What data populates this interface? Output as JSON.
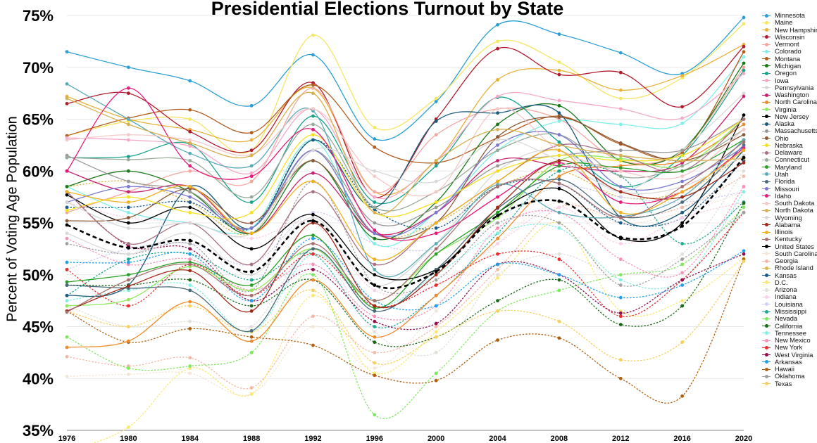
{
  "chart_data": {
    "type": "line",
    "title": "Presidential Elections Turnout by State",
    "ylabel": "Percent of Voting Age Population",
    "xlabel": "",
    "ylim": [
      35,
      75
    ],
    "yticks": [
      "35%",
      "40%",
      "45%",
      "50%",
      "55%",
      "60%",
      "65%",
      "70%",
      "75%"
    ],
    "ytick_values": [
      35,
      40,
      45,
      50,
      55,
      60,
      65,
      70,
      75
    ],
    "x": [
      "1976",
      "1980",
      "1984",
      "1988",
      "1992",
      "1996",
      "2000",
      "2004",
      "2008",
      "2012",
      "2016",
      "2020"
    ],
    "grid": true,
    "legend_position": "right",
    "series": [
      {
        "name": "Minnesota",
        "color": "#2a9fd6",
        "style": "solid",
        "values": [
          71.5,
          70.0,
          68.7,
          66.3,
          71.2,
          63.1,
          66.7,
          74.1,
          73.2,
          71.4,
          69.4,
          74.8
        ]
      },
      {
        "name": "Maine",
        "color": "#f5e663",
        "style": "solid",
        "values": [
          63.4,
          64.8,
          65.0,
          62.0,
          73.1,
          64.2,
          67.0,
          72.5,
          70.5,
          67.0,
          69.0,
          74.2
        ]
      },
      {
        "name": "New Hampshire",
        "color": "#e8b13a",
        "style": "solid",
        "values": [
          67.2,
          65.0,
          64.0,
          63.0,
          68.0,
          58.0,
          61.0,
          68.8,
          69.7,
          67.8,
          69.2,
          72.2
        ]
      },
      {
        "name": "Wisconsin",
        "color": "#b01c2e",
        "style": "solid",
        "values": [
          66.5,
          67.5,
          63.8,
          62.0,
          68.5,
          57.5,
          65.0,
          71.8,
          69.3,
          69.5,
          66.2,
          72.0
        ]
      },
      {
        "name": "Vermont",
        "color": "#f4a6a0",
        "style": "solid",
        "values": [
          56.0,
          58.0,
          60.0,
          59.0,
          68.0,
          58.0,
          63.5,
          66.0,
          65.0,
          61.0,
          62.0,
          70.0
        ]
      },
      {
        "name": "Colorado",
        "color": "#7ff0e8",
        "style": "solid",
        "values": [
          58.5,
          56.0,
          55.0,
          54.5,
          63.0,
          53.0,
          56.0,
          62.0,
          64.8,
          64.5,
          64.6,
          71.0
        ]
      },
      {
        "name": "Montana",
        "color": "#b35c1e",
        "style": "solid",
        "values": [
          63.4,
          65.1,
          65.9,
          63.7,
          68.3,
          62.3,
          60.8,
          63.2,
          65.3,
          62.6,
          61.8,
          71.5
        ]
      },
      {
        "name": "Michigan",
        "color": "#1a7a1a",
        "style": "solid",
        "values": [
          58.5,
          60.0,
          58.0,
          54.0,
          61.0,
          53.5,
          57.0,
          64.5,
          66.3,
          61.0,
          62.0,
          70.4
        ]
      },
      {
        "name": "Oregon",
        "color": "#1aa38a",
        "style": "solid",
        "values": [
          61.3,
          61.4,
          62.6,
          57.0,
          65.3,
          57.0,
          60.5,
          67.1,
          62.8,
          58.5,
          61.5,
          69.7
        ]
      },
      {
        "name": "Iowa",
        "color": "#f5a8c8",
        "style": "solid",
        "values": [
          63.2,
          63.0,
          62.4,
          59.8,
          66.0,
          57.5,
          61.0,
          67.2,
          66.8,
          66.0,
          65.1,
          69.4
        ]
      },
      {
        "name": "Pennsylvania",
        "color": "#d8d8d8",
        "style": "solid",
        "values": [
          54.0,
          52.0,
          54.0,
          50.0,
          55.5,
          49.0,
          53.0,
          60.0,
          62.0,
          58.0,
          62.0,
          67.5
        ]
      },
      {
        "name": "Washington",
        "color": "#c8206e",
        "style": "solid",
        "values": [
          60.0,
          58.0,
          58.5,
          54.0,
          59.8,
          54.0,
          56.0,
          61.0,
          60.5,
          60.0,
          60.8,
          67.2
        ]
      },
      {
        "name": "North Carolina",
        "color": "#ef8a2a",
        "style": "solid",
        "values": [
          43.0,
          43.6,
          47.4,
          43.6,
          49.5,
          44.0,
          48.0,
          53.5,
          59.5,
          60.5,
          61.0,
          64.5
        ]
      },
      {
        "name": "Virginia",
        "color": "#8fea5a",
        "style": "solid",
        "values": [
          47.0,
          47.6,
          50.8,
          48.5,
          52.5,
          47.5,
          52.0,
          55.5,
          61.0,
          61.2,
          60.5,
          65.0
        ]
      },
      {
        "name": "New Jersey",
        "color": "#000000",
        "style": "solid",
        "values": [
          57.7,
          55.0,
          56.5,
          52.5,
          55.8,
          50.0,
          50.5,
          56.0,
          58.3,
          53.5,
          55.0,
          65.4
        ]
      },
      {
        "name": "Alaska",
        "color": "#1a5a7a",
        "style": "solid",
        "values": [
          48.0,
          49.0,
          58.5,
          54.5,
          63.0,
          56.5,
          64.8,
          65.6,
          65.6,
          55.5,
          56.0,
          62.0
        ]
      },
      {
        "name": "Massachusetts",
        "color": "#999999",
        "style": "solid",
        "values": [
          61.5,
          59.0,
          58.0,
          54.5,
          62.0,
          55.0,
          56.5,
          60.5,
          61.5,
          62.0,
          62.0,
          65.0
        ]
      },
      {
        "name": "Ohio",
        "color": "#8b5a3a",
        "style": "solid",
        "values": [
          55.2,
          55.5,
          58.3,
          55.0,
          61.0,
          54.0,
          55.0,
          63.3,
          65.2,
          62.7,
          61.0,
          63.5
        ]
      },
      {
        "name": "Nebraska",
        "color": "#f5e020",
        "style": "solid",
        "values": [
          56.2,
          57.5,
          56.0,
          56.0,
          63.5,
          56.0,
          57.0,
          60.0,
          61.5,
          61.0,
          61.5,
          65.0
        ]
      },
      {
        "name": "Delaware",
        "color": "#a87080",
        "style": "solid",
        "values": [
          58.0,
          53.0,
          55.0,
          51.0,
          58.0,
          51.0,
          55.0,
          59.0,
          62.5,
          61.5,
          60.0,
          65.0
        ]
      },
      {
        "name": "Connecticut",
        "color": "#9aaa9a",
        "style": "solid",
        "values": [
          61.3,
          61.1,
          61.0,
          57.5,
          64.5,
          56.5,
          58.0,
          62.0,
          63.5,
          59.5,
          60.5,
          64.0
        ]
      },
      {
        "name": "Maryland",
        "color": "#2aa02a",
        "style": "solid",
        "values": [
          49.3,
          50.0,
          51.2,
          49.0,
          53.8,
          46.8,
          52.0,
          56.0,
          60.5,
          60.3,
          60.0,
          63.0
        ]
      },
      {
        "name": "Utah",
        "color": "#5aaab8",
        "style": "solid",
        "values": [
          68.4,
          65.0,
          61.7,
          60.5,
          65.8,
          50.5,
          53.0,
          58.7,
          56.0,
          55.6,
          57.5,
          63.0
        ]
      },
      {
        "name": "Florida",
        "color": "#4a6a7a",
        "style": "solid",
        "values": [
          49.0,
          48.7,
          48.5,
          44.6,
          52.5,
          46.5,
          50.5,
          56.4,
          59.2,
          55.6,
          57.0,
          62.5
        ]
      },
      {
        "name": "Missouri",
        "color": "#7a78d0",
        "style": "solid",
        "values": [
          57.0,
          58.5,
          57.5,
          54.5,
          62.0,
          54.0,
          56.0,
          62.5,
          63.5,
          58.5,
          59.0,
          62.3
        ]
      },
      {
        "name": "Idaho",
        "color": "#e81a7a",
        "style": "solid",
        "values": [
          60.0,
          68.0,
          60.5,
          59.5,
          64.0,
          54.3,
          54.0,
          57.5,
          60.8,
          57.0,
          58.0,
          62.2
        ]
      },
      {
        "name": "South Dakota",
        "color": "#f5c8c8",
        "style": "solid",
        "values": [
          63.0,
          63.5,
          63.0,
          61.6,
          66.0,
          59.5,
          58.0,
          66.0,
          62.0,
          60.0,
          59.5,
          64.0
        ]
      },
      {
        "name": "North Dakota",
        "color": "#d8b050",
        "style": "solid",
        "values": [
          67.0,
          64.5,
          62.7,
          61.5,
          67.5,
          56.0,
          61.0,
          64.0,
          62.5,
          61.5,
          61.0,
          61.2
        ]
      },
      {
        "name": "Wyoming",
        "color": "#d8d8d8",
        "style": "solid",
        "values": [
          57.0,
          54.5,
          55.0,
          54.0,
          62.0,
          60.0,
          59.0,
          63.0,
          61.0,
          58.0,
          58.5,
          61.5
        ]
      },
      {
        "name": "Alabama",
        "color": "#a02818",
        "style": "solid",
        "values": [
          46.5,
          48.9,
          50.4,
          46.5,
          55.0,
          47.0,
          50.0,
          56.5,
          61.0,
          58.0,
          57.5,
          60.8
        ]
      },
      {
        "name": "Illinois",
        "color": "#f0b020",
        "style": "solid",
        "values": [
          58.0,
          57.0,
          58.5,
          54.0,
          59.0,
          51.5,
          55.0,
          59.0,
          62.0,
          56.0,
          58.0,
          62.0
        ]
      },
      {
        "name": "Kentucky",
        "color": "#a87070",
        "style": "solid",
        "values": [
          46.4,
          49.5,
          51.0,
          48.0,
          53.0,
          47.5,
          52.5,
          58.5,
          58.8,
          55.5,
          58.5,
          62.8
        ]
      },
      {
        "name": "United States",
        "color": "#000000",
        "style": "dashed",
        "values": [
          54.8,
          52.6,
          53.3,
          50.3,
          55.2,
          49.0,
          50.3,
          55.7,
          57.1,
          53.6,
          54.7,
          61.3
        ]
      },
      {
        "name": "South Carolina",
        "color": "#f3e6d6",
        "style": "dotted",
        "values": [
          40.2,
          40.4,
          40.5,
          38.5,
          45.0,
          41.0,
          46.5,
          53.0,
          57.0,
          55.0,
          56.0,
          58.0
        ]
      },
      {
        "name": "Georgia",
        "color": "#f4b8a8",
        "style": "dotted",
        "values": [
          42.1,
          41.2,
          42.0,
          39.1,
          46.0,
          42.5,
          45.0,
          50.5,
          56.5,
          55.5,
          56.5,
          59.5
        ]
      },
      {
        "name": "Rhode Island",
        "color": "#d8b850",
        "style": "dotted",
        "values": [
          58.5,
          59.0,
          57.0,
          54.0,
          62.0,
          54.0,
          55.0,
          58.5,
          60.0,
          57.5,
          58.0,
          61.5
        ]
      },
      {
        "name": "Kansas",
        "color": "#1a5a8a",
        "style": "dotted",
        "values": [
          56.5,
          56.5,
          57.0,
          54.5,
          63.0,
          56.3,
          54.5,
          58.5,
          58.8,
          55.0,
          55.5,
          61.0
        ]
      },
      {
        "name": "D.C.",
        "color": "#f8e870",
        "style": "dotted",
        "values": [
          33.0,
          35.3,
          41.0,
          38.5,
          48.0,
          40.5,
          44.5,
          49.7,
          55.0,
          46.5,
          47.5,
          51.6
        ]
      },
      {
        "name": "Arizona",
        "color": "#e0e0d8",
        "style": "dotted",
        "values": [
          47.0,
          45.0,
          45.5,
          45.0,
          52.5,
          44.5,
          42.5,
          50.0,
          52.0,
          50.0,
          52.0,
          60.0
        ]
      },
      {
        "name": "Indiana",
        "color": "#f8d0e8",
        "style": "dotted",
        "values": [
          57.0,
          55.5,
          55.0,
          53.5,
          55.0,
          48.5,
          49.0,
          53.0,
          56.5,
          53.0,
          55.5,
          57.0
        ]
      },
      {
        "name": "Louisiana",
        "color": "#d0d0f0",
        "style": "dotted",
        "values": [
          50.5,
          52.5,
          53.0,
          51.0,
          56.0,
          53.0,
          52.5,
          55.5,
          58.5,
          57.5,
          57.0,
          58.0
        ]
      },
      {
        "name": "Mississippi",
        "color": "#20a890",
        "style": "dotted",
        "values": [
          48.0,
          51.5,
          52.0,
          49.5,
          52.0,
          45.0,
          48.0,
          54.0,
          60.0,
          59.5,
          53.0,
          57.0
        ]
      },
      {
        "name": "Nevada",
        "color": "#80e860",
        "style": "dotted",
        "values": [
          44.0,
          41.0,
          41.2,
          42.5,
          50.0,
          36.5,
          40.5,
          46.5,
          48.5,
          50.0,
          51.0,
          56.5
        ]
      },
      {
        "name": "California",
        "color": "#1a6a1a",
        "style": "dotted",
        "values": [
          49.0,
          49.0,
          49.5,
          47.0,
          49.5,
          43.5,
          44.0,
          47.5,
          49.5,
          45.2,
          47.0,
          56.9
        ]
      },
      {
        "name": "Tennessee",
        "color": "#80f0e0",
        "style": "dotted",
        "values": [
          47.5,
          48.5,
          49.0,
          44.5,
          52.0,
          47.0,
          50.0,
          54.0,
          54.5,
          49.5,
          49.5,
          58.0
        ]
      },
      {
        "name": "New Mexico",
        "color": "#f890b8",
        "style": "dotted",
        "values": [
          53.5,
          51.0,
          51.5,
          48.5,
          51.0,
          46.0,
          47.0,
          54.5,
          56.0,
          51.5,
          50.2,
          58.5
        ]
      },
      {
        "name": "New York",
        "color": "#e83030",
        "style": "dotted",
        "values": [
          50.5,
          47.0,
          51.0,
          48.0,
          52.0,
          47.0,
          49.0,
          52.0,
          51.5,
          46.0,
          49.5,
          56.0
        ]
      },
      {
        "name": "West Virginia",
        "color": "#901050",
        "style": "dotted",
        "values": [
          58.0,
          52.8,
          52.5,
          47.5,
          50.5,
          45.5,
          45.3,
          51.0,
          50.0,
          46.3,
          49.5,
          52.0
        ]
      },
      {
        "name": "Arkansas",
        "color": "#20a0e8",
        "style": "dotted",
        "values": [
          51.2,
          51.2,
          52.0,
          47.5,
          53.5,
          47.5,
          47.0,
          51.0,
          50.0,
          47.8,
          49.0,
          52.3
        ]
      },
      {
        "name": "Hawaii",
        "color": "#b06010",
        "style": "dotted",
        "values": [
          46.5,
          43.5,
          44.8,
          44.0,
          43.2,
          40.3,
          39.8,
          43.7,
          43.9,
          40.0,
          38.3,
          51.5
        ]
      },
      {
        "name": "Oklahoma",
        "color": "#a0a0a0",
        "style": "dotted",
        "values": [
          53.0,
          52.0,
          53.0,
          48.5,
          59.0,
          49.0,
          49.5,
          55.0,
          55.0,
          49.0,
          51.5,
          56.0
        ]
      },
      {
        "name": "Texas",
        "color": "#f8d060",
        "style": "dotted",
        "values": [
          46.5,
          45.0,
          47.0,
          44.5,
          48.5,
          41.5,
          44.0,
          46.5,
          45.5,
          41.8,
          43.5,
          51.3
        ]
      }
    ]
  }
}
